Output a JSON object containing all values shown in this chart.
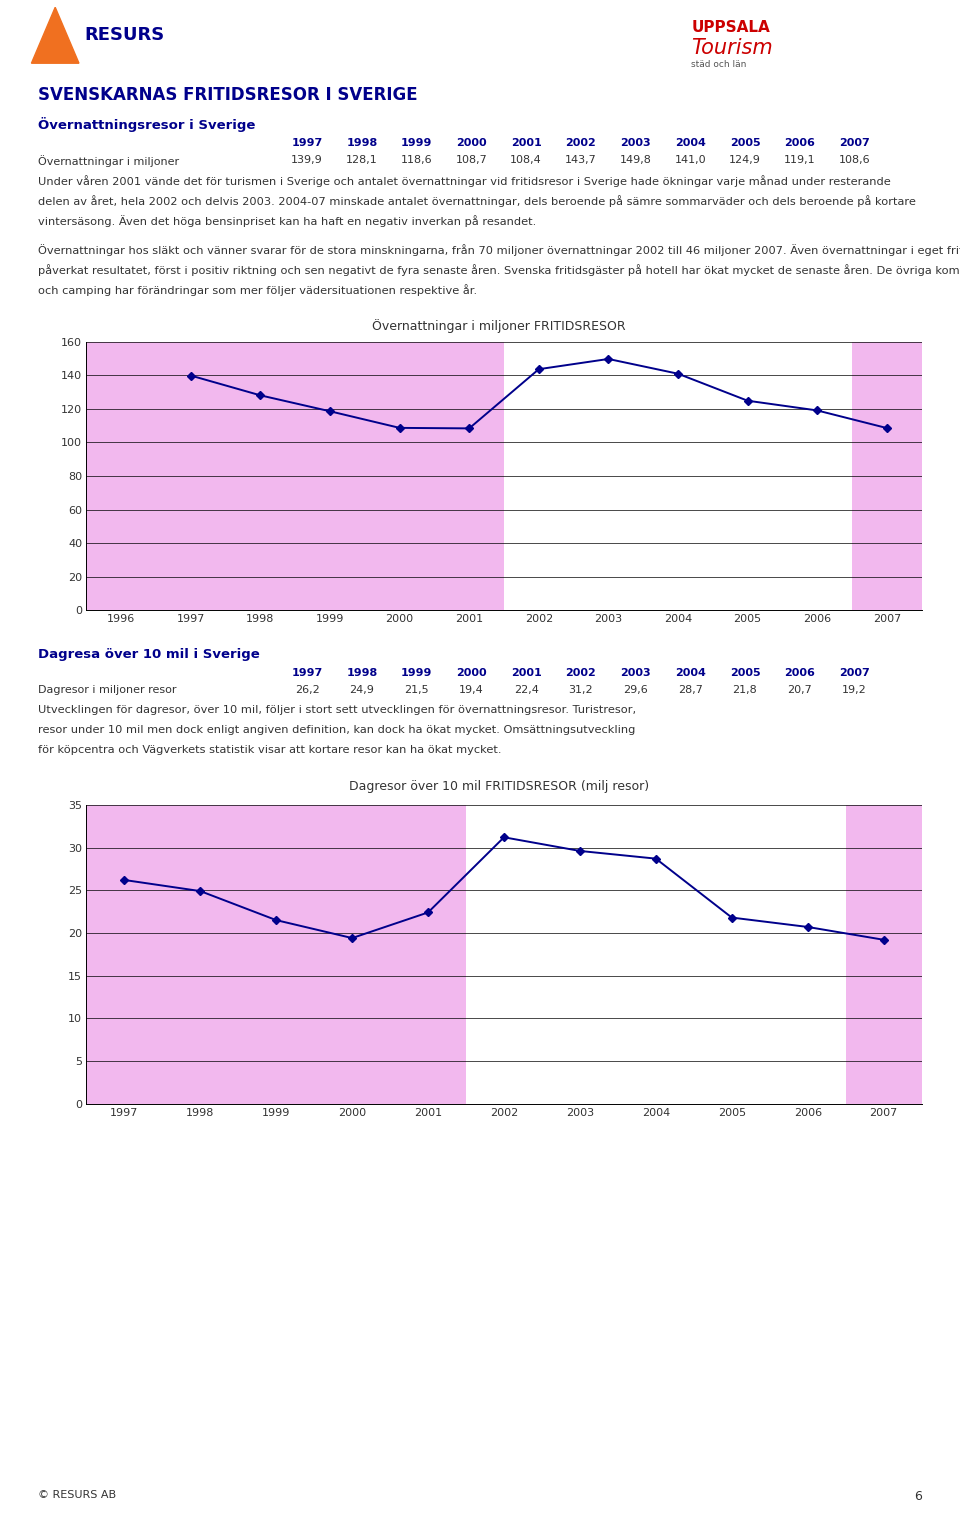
{
  "title_main": "SVENSKARNAS FRITIDSRESOR I SVERIGE",
  "section1_title": "Övernattningsresor i Sverige",
  "section1_years": [
    "1997",
    "1998",
    "1999",
    "2000",
    "2001",
    "2002",
    "2003",
    "2004",
    "2005",
    "2006",
    "2007"
  ],
  "section1_label": "Övernattningar i miljoner",
  "section1_values_str": [
    "139,9",
    "128,1",
    "118,6",
    "108,7",
    "108,4",
    "143,7",
    "149,8",
    "141,0",
    "124,9",
    "119,1",
    "108,6"
  ],
  "section1_values": [
    139.9,
    128.1,
    118.6,
    108.7,
    108.4,
    143.7,
    149.8,
    141.0,
    124.9,
    119.1,
    108.6
  ],
  "section1_text1_lines": [
    "Under våren 2001 vände det för turismen i Sverige och antalet övernattningar vid fritidsresor i Sverige hade ökningar varje månad under resterande",
    "delen av året, hela 2002 och delvis 2003. 2004-07 minskade antalet övernattningar, dels beroende på sämre sommarväder och dels beroende på kortare",
    "vintersäsong. Även det höga bensinpriset kan ha haft en negativ inverkan på resandet."
  ],
  "section1_text2_lines": [
    "Övernattningar hos släkt och vänner svarar för de stora minskningarna, från 70 miljoner övernattningar 2002 till 46 miljoner 2007. Även övernattningar i eget fritidshus och andra enklare boendeformer har",
    "påverkat resultatet, först i positiv riktning och sen negativt de fyra senaste åren. Svenska fritidsgäster på hotell har ökat mycket de senaste åren. De övriga kommersiella boendeformerna stugbyar, vandrarhem",
    "och camping har förändringar som mer följer vädersituationen respektive år."
  ],
  "chart1_title_normal": "Övernattningar i miljoner ",
  "chart1_title_bold": "FRITIDSRESOR",
  "chart1_x_ticks": [
    1996,
    1997,
    1998,
    1999,
    2000,
    2001,
    2002,
    2003,
    2004,
    2005,
    2006,
    2007
  ],
  "chart1_x_data": [
    1997,
    1998,
    1999,
    2000,
    2001,
    2002,
    2003,
    2004,
    2005,
    2006,
    2007
  ],
  "chart1_values": [
    139.9,
    128.1,
    118.6,
    108.7,
    108.4,
    143.7,
    149.8,
    141.0,
    124.9,
    119.1,
    108.6
  ],
  "chart1_ylim": [
    0,
    160
  ],
  "chart1_yticks": [
    0,
    20,
    40,
    60,
    80,
    100,
    120,
    140,
    160
  ],
  "section2_title": "Dagresa över 10 mil i Sverige",
  "section2_years": [
    "1997",
    "1998",
    "1999",
    "2000",
    "2001",
    "2002",
    "2003",
    "2004",
    "2005",
    "2006",
    "2007"
  ],
  "section2_label": "Dagresor i miljoner resor",
  "section2_values_str": [
    "26,2",
    "24,9",
    "21,5",
    "19,4",
    "22,4",
    "31,2",
    "29,6",
    "28,7",
    "21,8",
    "20,7",
    "19,2"
  ],
  "section2_values": [
    26.2,
    24.9,
    21.5,
    19.4,
    22.4,
    31.2,
    29.6,
    28.7,
    21.8,
    20.7,
    19.2
  ],
  "section2_text_lines": [
    "Utvecklingen för dagresor, över 10 mil, följer i stort sett utvecklingen för övernattningsresor. Turistresor,",
    "resor under 10 mil men dock enligt angiven definition, kan dock ha ökat mycket. Omsättningsutveckling",
    "för köpcentra och Vägverkets statistik visar att kortare resor kan ha ökat mycket."
  ],
  "chart2_title_normal": "Dagresor över 10 mil ",
  "chart2_title_bold": "FRITIDSRESOR",
  "chart2_title_suffix": " (milj resor)",
  "chart2_x_ticks": [
    1997,
    1998,
    1999,
    2000,
    2001,
    2002,
    2003,
    2004,
    2005,
    2006,
    2007
  ],
  "chart2_x_data": [
    1997,
    1998,
    1999,
    2000,
    2001,
    2002,
    2003,
    2004,
    2005,
    2006,
    2007
  ],
  "chart2_values": [
    26.2,
    24.9,
    21.5,
    19.4,
    22.4,
    31.2,
    29.6,
    28.7,
    21.8,
    20.7,
    19.2
  ],
  "chart2_ylim": [
    0,
    35
  ],
  "chart2_yticks": [
    0,
    5,
    10,
    15,
    20,
    25,
    30,
    35
  ],
  "line_color": "#00008B",
  "pink_color": "#F2B8EE",
  "white_color": "#FFFFFF",
  "bg_color": "#FFFFFF",
  "blue_color": "#00008B",
  "footer_text": "© RESURS AB",
  "page_number": "6"
}
